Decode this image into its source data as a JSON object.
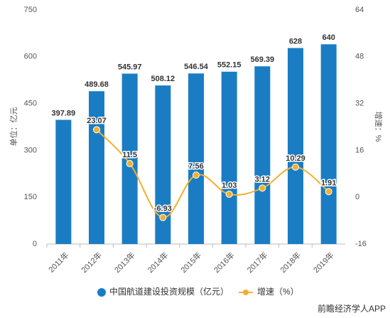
{
  "chart_data": {
    "type": "bar_line",
    "categories": [
      "2011年",
      "2012年",
      "2013年",
      "2014年",
      "2015年",
      "2016年",
      "2017年",
      "2018年",
      "2019年"
    ],
    "series": [
      {
        "name": "中国航道建设投资规模（亿元）",
        "color": "#1a7dc4",
        "type": "bar",
        "values": [
          397.89,
          489.68,
          545.97,
          508.12,
          546.54,
          552.15,
          569.39,
          628,
          640
        ]
      },
      {
        "name": "增速（%）",
        "color": "#f0b030",
        "type": "line",
        "axis": "y2",
        "values": [
          null,
          23.07,
          11.5,
          -6.93,
          7.56,
          1.03,
          3.12,
          10.29,
          1.91
        ]
      }
    ],
    "ylabel": "单位：亿元",
    "y2label": "增速：%",
    "ylim": [
      0,
      750
    ],
    "yticks": [
      0,
      150,
      300,
      450,
      600,
      750
    ],
    "y2lim": [
      -16,
      64
    ],
    "y2ticks": [
      -16,
      0,
      16,
      32,
      48,
      64
    ],
    "legend": "bottom",
    "source": "前瞻经济学人APP"
  }
}
